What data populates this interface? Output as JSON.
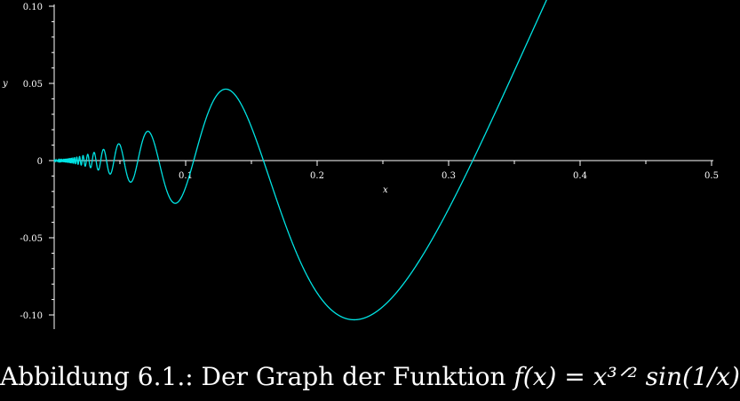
{
  "chart_data": {
    "type": "line",
    "title": "",
    "xlabel": "x",
    "ylabel": "y",
    "xlim": [
      0,
      0.5
    ],
    "ylim": [
      -0.1,
      0.1
    ],
    "x_ticks": [
      0.1,
      0.2,
      0.3,
      0.4,
      0.5
    ],
    "x_tick_labels": [
      "0.1",
      "0.2",
      "0.3",
      "0.4",
      "0.5"
    ],
    "y_ticks": [
      0.1,
      0.05,
      0,
      -0.05,
      -0.1
    ],
    "y_tick_labels": [
      "0.10",
      "0.05",
      "0",
      "-0.05",
      "-0.10"
    ],
    "grid": false,
    "legend": "none",
    "series": [
      {
        "function": "x^(3/2) * sin(1/x)",
        "domain": [
          0.0001,
          0.38
        ],
        "color": "#00e5e5"
      }
    ],
    "axis_color": "#ffffff"
  },
  "caption": {
    "prefix": "Abbildung 6.1.:  Der Graph der Funktion ",
    "formula": "f(x) = x³ᐟ² sin(1/x)"
  }
}
